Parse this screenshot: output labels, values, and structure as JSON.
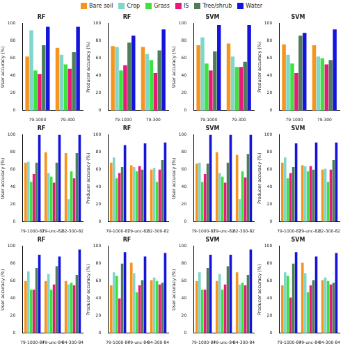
{
  "chart_data": [
    {
      "type": "bar",
      "title": "RF",
      "y_label": "User accuracy (%)",
      "categories": [
        "79-1000",
        "79-300"
      ],
      "series": [
        {
          "name": "Bare soil",
          "color": "#f7941d",
          "values": [
            62,
            72
          ]
        },
        {
          "name": "Crop",
          "color": "#7fd6cb",
          "values": [
            92,
            64
          ]
        },
        {
          "name": "Grass",
          "color": "#3de23d",
          "values": [
            46,
            53
          ]
        },
        {
          "name": "IS",
          "color": "#e8187c",
          "values": [
            42,
            48
          ]
        },
        {
          "name": "Tree/shrub",
          "color": "#4f7d5b",
          "values": [
            75,
            67
          ]
        },
        {
          "name": "Water",
          "color": "#1414dc",
          "values": [
            96,
            96
          ]
        }
      ],
      "ylim": [
        0,
        100
      ],
      "yticks": [
        0,
        20,
        40,
        60,
        80,
        100
      ],
      "grid": false,
      "legend": "top"
    },
    {
      "type": "bar",
      "title": "RF",
      "y_label": "Producer accuracy (%)",
      "categories": [
        "79-1000",
        "79-300"
      ],
      "series": [
        {
          "name": "Bare soil",
          "color": "#f7941d",
          "values": [
            74,
            73
          ]
        },
        {
          "name": "Crop",
          "color": "#7fd6cb",
          "values": [
            73,
            65
          ]
        },
        {
          "name": "Grass",
          "color": "#3de23d",
          "values": [
            46,
            58
          ]
        },
        {
          "name": "IS",
          "color": "#e8187c",
          "values": [
            52,
            43
          ]
        },
        {
          "name": "Tree/shrub",
          "color": "#4f7d5b",
          "values": [
            78,
            69
          ]
        },
        {
          "name": "Water",
          "color": "#1414dc",
          "values": [
            86,
            93
          ]
        }
      ],
      "ylim": [
        0,
        100
      ],
      "yticks": [
        0,
        20,
        40,
        60,
        80,
        100
      ],
      "grid": false,
      "legend": "top"
    },
    {
      "type": "bar",
      "title": "SVM",
      "y_label": "User accuracy (%)",
      "categories": [
        "79-1000",
        "79-300"
      ],
      "series": [
        {
          "name": "Bare soil",
          "color": "#f7941d",
          "values": [
            75,
            77
          ]
        },
        {
          "name": "Crop",
          "color": "#7fd6cb",
          "values": [
            84,
            62
          ]
        },
        {
          "name": "Grass",
          "color": "#3de23d",
          "values": [
            54,
            50
          ]
        },
        {
          "name": "IS",
          "color": "#e8187c",
          "values": [
            46,
            50
          ]
        },
        {
          "name": "Tree/shrub",
          "color": "#4f7d5b",
          "values": [
            68,
            56
          ]
        },
        {
          "name": "Water",
          "color": "#1414dc",
          "values": [
            98,
            98
          ]
        }
      ],
      "ylim": [
        0,
        100
      ],
      "yticks": [
        0,
        20,
        40,
        60,
        80,
        100
      ],
      "grid": false,
      "legend": "top"
    },
    {
      "type": "bar",
      "title": "SVM",
      "y_label": "Producer accuracy (%)",
      "categories": [
        "79-1000",
        "79-300"
      ],
      "series": [
        {
          "name": "Bare soil",
          "color": "#f7941d",
          "values": [
            76,
            75
          ]
        },
        {
          "name": "Crop",
          "color": "#7fd6cb",
          "values": [
            64,
            62
          ]
        },
        {
          "name": "Grass",
          "color": "#3de23d",
          "values": [
            54,
            60
          ]
        },
        {
          "name": "IS",
          "color": "#e8187c",
          "values": [
            43,
            53
          ]
        },
        {
          "name": "Tree/shrub",
          "color": "#4f7d5b",
          "values": [
            86,
            58
          ]
        },
        {
          "name": "Water",
          "color": "#1414dc",
          "values": [
            89,
            93
          ]
        }
      ],
      "ylim": [
        0,
        100
      ],
      "yticks": [
        0,
        20,
        40,
        60,
        80,
        100
      ],
      "grid": false,
      "legend": "top"
    },
    {
      "type": "bar",
      "title": "RF",
      "y_label": "User accuracy (%)",
      "categories": [
        "79-1000-82",
        "79-unc-82",
        "82-300-82"
      ],
      "series": [
        {
          "name": "Bare soil",
          "color": "#f7941d",
          "values": [
            68,
            80,
            79
          ]
        },
        {
          "name": "Crop",
          "color": "#7fd6cb",
          "values": [
            69,
            56,
            26
          ]
        },
        {
          "name": "Grass",
          "color": "#3de23d",
          "values": [
            46,
            52,
            58
          ]
        },
        {
          "name": "IS",
          "color": "#e8187c",
          "values": [
            55,
            45,
            50
          ]
        },
        {
          "name": "Tree/shrub",
          "color": "#4f7d5b",
          "values": [
            68,
            68,
            79
          ]
        },
        {
          "name": "Water",
          "color": "#1414dc",
          "values": [
            100,
            100,
            100
          ]
        }
      ],
      "ylim": [
        0,
        100
      ],
      "yticks": [
        0,
        20,
        40,
        60,
        80,
        100
      ],
      "grid": false,
      "legend": "top"
    },
    {
      "type": "bar",
      "title": "RF",
      "y_label": "Producer accuracy (%)",
      "categories": [
        "79-1000-82",
        "79-unc-82",
        "82-300-82"
      ],
      "series": [
        {
          "name": "Bare soil",
          "color": "#f7941d",
          "values": [
            68,
            65,
            60
          ]
        },
        {
          "name": "Crop",
          "color": "#7fd6cb",
          "values": [
            74,
            63,
            62
          ]
        },
        {
          "name": "Grass",
          "color": "#3de23d",
          "values": [
            50,
            58,
            46
          ]
        },
        {
          "name": "IS",
          "color": "#e8187c",
          "values": [
            56,
            64,
            60
          ]
        },
        {
          "name": "Tree/shrub",
          "color": "#4f7d5b",
          "values": [
            63,
            60,
            71
          ]
        },
        {
          "name": "Water",
          "color": "#1414dc",
          "values": [
            88,
            90,
            91
          ]
        }
      ],
      "ylim": [
        0,
        100
      ],
      "yticks": [
        0,
        20,
        40,
        60,
        80,
        100
      ],
      "grid": false,
      "legend": "top"
    },
    {
      "type": "bar",
      "title": "SVM",
      "y_label": "User accuracy (%)",
      "categories": [
        "79-1000-82",
        "79-unc-82",
        "82-300-82"
      ],
      "series": [
        {
          "name": "Bare soil",
          "color": "#f7941d",
          "values": [
            67,
            80,
            77
          ]
        },
        {
          "name": "Crop",
          "color": "#7fd6cb",
          "values": [
            68,
            56,
            26
          ]
        },
        {
          "name": "Grass",
          "color": "#3de23d",
          "values": [
            46,
            52,
            58
          ]
        },
        {
          "name": "IS",
          "color": "#e8187c",
          "values": [
            55,
            45,
            51
          ]
        },
        {
          "name": "Tree/shrub",
          "color": "#4f7d5b",
          "values": [
            67,
            68,
            78
          ]
        },
        {
          "name": "Water",
          "color": "#1414dc",
          "values": [
            100,
            100,
            100
          ]
        }
      ],
      "ylim": [
        0,
        100
      ],
      "yticks": [
        0,
        20,
        40,
        60,
        80,
        100
      ],
      "grid": false,
      "legend": "top"
    },
    {
      "type": "bar",
      "title": "SVM",
      "y_label": "Producer accuracy (%)",
      "categories": [
        "79-1000-82",
        "79-unc-82",
        "82-300-82"
      ],
      "series": [
        {
          "name": "Bare soil",
          "color": "#f7941d",
          "values": [
            68,
            65,
            60
          ]
        },
        {
          "name": "Crop",
          "color": "#7fd6cb",
          "values": [
            74,
            64,
            61
          ]
        },
        {
          "name": "Grass",
          "color": "#3de23d",
          "values": [
            50,
            58,
            46
          ]
        },
        {
          "name": "IS",
          "color": "#e8187c",
          "values": [
            56,
            64,
            60
          ]
        },
        {
          "name": "Tree/shrub",
          "color": "#4f7d5b",
          "values": [
            63,
            60,
            71
          ]
        },
        {
          "name": "Water",
          "color": "#1414dc",
          "values": [
            90,
            91,
            91
          ]
        }
      ],
      "ylim": [
        0,
        100
      ],
      "yticks": [
        0,
        20,
        40,
        60,
        80,
        100
      ],
      "grid": false,
      "legend": "top"
    },
    {
      "type": "bar",
      "title": "RF",
      "y_label": "User accuracy (%)",
      "categories": [
        "79-1000-84",
        "79-unc-84",
        "84-300-84"
      ],
      "series": [
        {
          "name": "Bare soil",
          "color": "#f7941d",
          "values": [
            60,
            60,
            60
          ]
        },
        {
          "name": "Crop",
          "color": "#7fd6cb",
          "values": [
            71,
            68,
            56
          ]
        },
        {
          "name": "Grass",
          "color": "#3de23d",
          "values": [
            50,
            50,
            58
          ]
        },
        {
          "name": "IS",
          "color": "#e8187c",
          "values": [
            50,
            56,
            55
          ]
        },
        {
          "name": "Tree/shrub",
          "color": "#4f7d5b",
          "values": [
            75,
            77,
            67
          ]
        },
        {
          "name": "Water",
          "color": "#1414dc",
          "values": [
            90,
            88,
            96
          ]
        }
      ],
      "ylim": [
        0,
        100
      ],
      "yticks": [
        0,
        20,
        40,
        60,
        80,
        100
      ],
      "grid": false,
      "legend": "top"
    },
    {
      "type": "bar",
      "title": "RF",
      "y_label": "Producer accuracy (%)",
      "categories": [
        "79-1000-84",
        "79-unc-84",
        "84-300-84"
      ],
      "series": [
        {
          "name": "Bare soil",
          "color": "#f7941d",
          "values": [
            55,
            81,
            61
          ]
        },
        {
          "name": "Crop",
          "color": "#7fd6cb",
          "values": [
            70,
            69,
            64
          ]
        },
        {
          "name": "Grass",
          "color": "#3de23d",
          "values": [
            66,
            47,
            60
          ]
        },
        {
          "name": "IS",
          "color": "#e8187c",
          "values": [
            40,
            55,
            56
          ]
        },
        {
          "name": "Tree/shrub",
          "color": "#4f7d5b",
          "values": [
            80,
            61,
            58
          ]
        },
        {
          "name": "Water",
          "color": "#1414dc",
          "values": [
            93,
            88,
            92
          ]
        }
      ],
      "ylim": [
        0,
        100
      ],
      "yticks": [
        0,
        20,
        40,
        60,
        80,
        100
      ],
      "grid": false,
      "legend": "top"
    },
    {
      "type": "bar",
      "title": "SVM",
      "y_label": "User accuracy (%)",
      "categories": [
        "79-1000-84",
        "79-unc-84",
        "84-300-84"
      ],
      "series": [
        {
          "name": "Bare soil",
          "color": "#f7941d",
          "values": [
            60,
            60,
            70
          ]
        },
        {
          "name": "Crop",
          "color": "#7fd6cb",
          "values": [
            70,
            68,
            56
          ]
        },
        {
          "name": "Grass",
          "color": "#3de23d",
          "values": [
            50,
            50,
            58
          ]
        },
        {
          "name": "IS",
          "color": "#e8187c",
          "values": [
            50,
            56,
            55
          ]
        },
        {
          "name": "Tree/shrub",
          "color": "#4f7d5b",
          "values": [
            75,
            77,
            67
          ]
        },
        {
          "name": "Water",
          "color": "#1414dc",
          "values": [
            90,
            90,
            96
          ]
        }
      ],
      "ylim": [
        0,
        100
      ],
      "yticks": [
        0,
        20,
        40,
        60,
        80,
        100
      ],
      "grid": false,
      "legend": "top"
    },
    {
      "type": "bar",
      "title": "SVM",
      "y_label": "Producer accuracy (%)",
      "categories": [
        "79-1000-84",
        "79-unc-84",
        "84-300-84"
      ],
      "series": [
        {
          "name": "Bare soil",
          "color": "#f7941d",
          "values": [
            55,
            81,
            61
          ]
        },
        {
          "name": "Crop",
          "color": "#7fd6cb",
          "values": [
            70,
            69,
            64
          ]
        },
        {
          "name": "Grass",
          "color": "#3de23d",
          "values": [
            66,
            47,
            60
          ]
        },
        {
          "name": "IS",
          "color": "#e8187c",
          "values": [
            41,
            55,
            56
          ]
        },
        {
          "name": "Tree/shrub",
          "color": "#4f7d5b",
          "values": [
            80,
            61,
            58
          ]
        },
        {
          "name": "Water",
          "color": "#1414dc",
          "values": [
            93,
            88,
            92
          ]
        }
      ],
      "ylim": [
        0,
        100
      ],
      "yticks": [
        0,
        20,
        40,
        60,
        80,
        100
      ],
      "grid": false,
      "legend": "top"
    }
  ]
}
